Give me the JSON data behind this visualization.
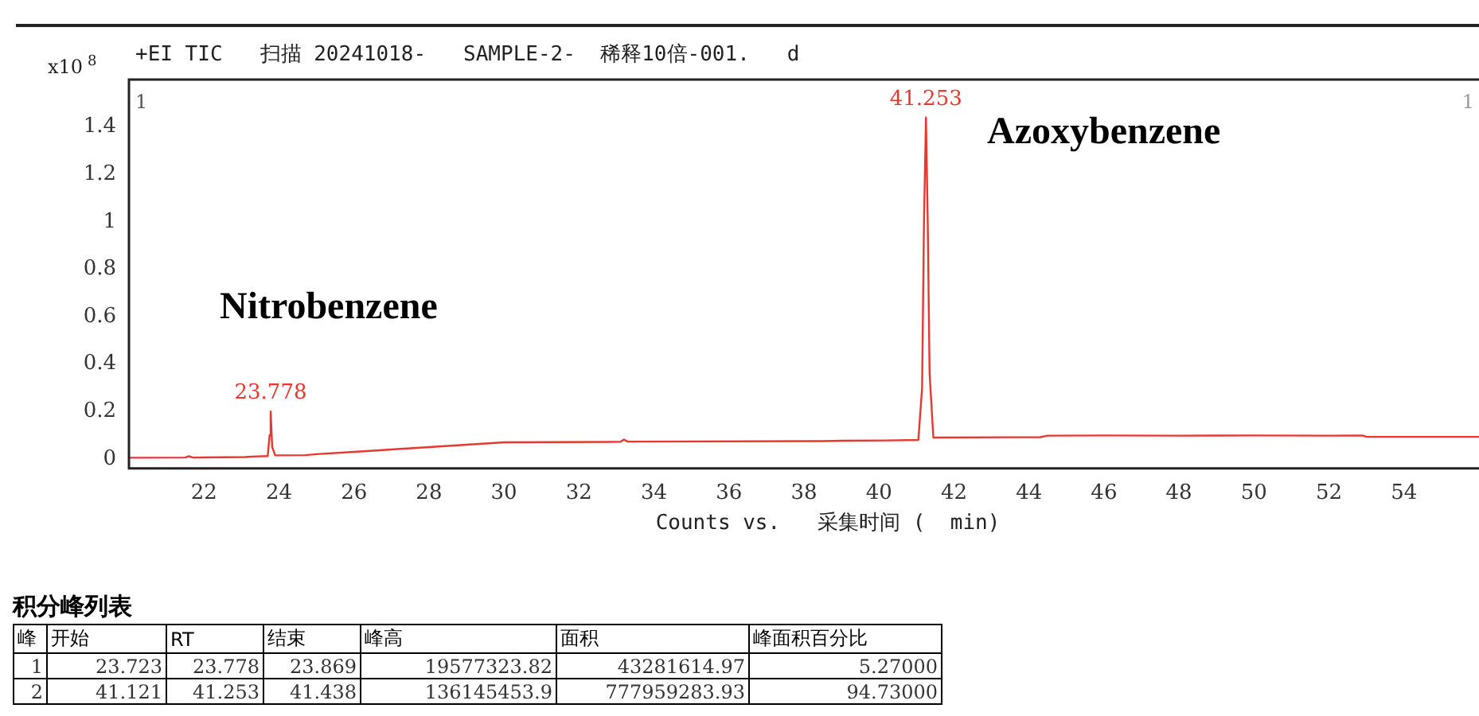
{
  "chart_data": {
    "type": "line",
    "title": "+EI TIC   扫描 20241018-   SAMPLE-2-  稀释10倍-001.   d",
    "xlabel": "Counts vs.   采集时间 (  min)",
    "ylabel": "x10$^{8}$",
    "x": [
      20,
      21.5,
      21.6,
      21.7,
      23.1,
      23.3,
      23.7,
      23.75,
      23.778,
      23.82,
      23.9,
      24.7,
      25,
      26,
      27,
      28,
      29,
      30,
      33.1,
      33.2,
      33.3,
      38.5,
      39,
      40.2,
      41.05,
      41.15,
      41.2,
      41.253,
      41.3,
      41.35,
      41.45,
      44.3,
      44.5,
      46,
      48,
      50,
      52,
      52.9,
      53,
      56
    ],
    "series": [
      {
        "color": "#e8372f",
        "values": [
          0.005,
          0.006,
          0.012,
          0.006,
          0.008,
          0.01,
          0.012,
          0.1,
          0.2,
          0.05,
          0.015,
          0.016,
          0.02,
          0.03,
          0.04,
          0.05,
          0.06,
          0.07,
          0.072,
          0.082,
          0.073,
          0.075,
          0.077,
          0.078,
          0.08,
          0.3,
          1.0,
          1.44,
          1.0,
          0.36,
          0.09,
          0.092,
          0.098,
          0.099,
          0.098,
          0.099,
          0.098,
          0.099,
          0.093,
          0.093
        ]
      }
    ],
    "xlim": [
      20,
      56
    ],
    "xticks": [
      22,
      24,
      26,
      28,
      30,
      32,
      34,
      36,
      38,
      40,
      42,
      44,
      46,
      48,
      50,
      52,
      54
    ],
    "ylim": [
      -0.04,
      1.6
    ],
    "yticks": [
      0,
      0.2,
      0.4,
      0.6,
      0.8,
      1,
      1.2,
      1.4
    ],
    "grid": false,
    "legend": false,
    "marker": "none",
    "line_style": "solid",
    "annotations": [
      {
        "text": "23.778",
        "x": 23.778,
        "y": 0.2
      },
      {
        "text": "41.253",
        "x": 41.253,
        "y": 1.44
      },
      "1",
      "1",
      "Nitrobenzene",
      "Azoxybenzene",
      "积分峰列表",
      "峰",
      "开始",
      "RT",
      "结束",
      "峰高",
      "面积",
      "峰面积百分比",
      "1",
      "23.723",
      "23.778",
      "23.869",
      "19577323.82",
      "43281614.97",
      "5.27000",
      "2",
      "41.121",
      "41.253",
      "41.438",
      "136145453.9",
      "777959283.93",
      "94.73000"
    ]
  }
}
